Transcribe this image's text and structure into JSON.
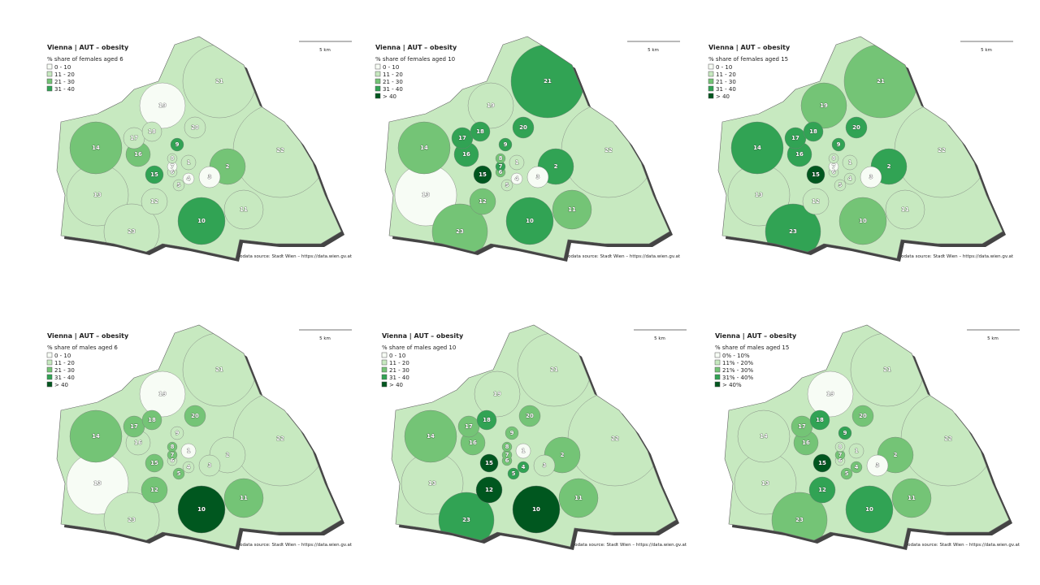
{
  "district_labels": [
    "21",
    "22",
    "2",
    "20",
    "19",
    "18",
    "17",
    "16",
    "14",
    "15",
    "13",
    "12",
    "23",
    "10",
    "11",
    "3",
    "4",
    "5",
    "6",
    "7",
    "8",
    "9",
    "1"
  ],
  "panels": [
    {
      "title": "Vienna | AUT – obesity",
      "subtitle": "% share of females aged 6",
      "scale": "5 km",
      "source": "geodata source: Stadt Wien – https://data.wien.gv.at",
      "legend": [
        {
          "label": "0 - 10",
          "color": "#f7fcf5"
        },
        {
          "label": "11 - 20",
          "color": "#c7e9c0"
        },
        {
          "label": "21 - 30",
          "color": "#74c476"
        },
        {
          "label": "31 - 40",
          "color": "#31a354"
        }
      ],
      "classes": [
        1,
        1,
        2,
        1,
        0,
        1,
        1,
        2,
        2,
        3,
        1,
        1,
        1,
        3,
        1,
        0,
        0,
        1,
        1,
        0,
        1,
        3,
        1
      ]
    },
    {
      "title": "Vienna | AUT – obesity",
      "subtitle": "% share of females aged 10",
      "scale": "5 km",
      "source": "geodata source: Stadt Wien – https://data.wien.gv.at",
      "legend": [
        {
          "label": "0 - 10",
          "color": "#f7fcf5"
        },
        {
          "label": "11 - 20",
          "color": "#c7e9c0"
        },
        {
          "label": "21 - 30",
          "color": "#74c476"
        },
        {
          "label": "31 - 40",
          "color": "#31a354"
        },
        {
          "label": "> 40",
          "color": "#00571f"
        }
      ],
      "classes": [
        3,
        1,
        3,
        3,
        1,
        3,
        3,
        3,
        2,
        4,
        0,
        2,
        2,
        3,
        2,
        0,
        0,
        1,
        2,
        3,
        2,
        3,
        1
      ]
    },
    {
      "title": "Vienna | AUT – obesity",
      "subtitle": "% share of females aged 15",
      "scale": "5 km",
      "source": "geodata source: Stadt Wien – https://data.wien.gv.at",
      "legend": [
        {
          "label": "0 - 10",
          "color": "#f7fcf5"
        },
        {
          "label": "11 - 20",
          "color": "#c7e9c0"
        },
        {
          "label": "21 - 30",
          "color": "#74c476"
        },
        {
          "label": "31 - 40",
          "color": "#31a354"
        },
        {
          "label": "> 40",
          "color": "#00571f"
        }
      ],
      "classes": [
        2,
        1,
        3,
        3,
        2,
        3,
        3,
        3,
        3,
        4,
        1,
        1,
        3,
        2,
        1,
        0,
        1,
        1,
        1,
        0,
        1,
        3,
        1
      ]
    },
    {
      "title": "Vienna | AUT – obesity",
      "subtitle": "% share of males aged 6",
      "scale": "5 km",
      "source": "geodata source: Stadt Wien – https://data.wien.gv.at",
      "legend": [
        {
          "label": "0 - 10",
          "color": "#f7fcf5"
        },
        {
          "label": "11 - 20",
          "color": "#c7e9c0"
        },
        {
          "label": "21 - 30",
          "color": "#74c476"
        },
        {
          "label": "31 - 40",
          "color": "#31a354"
        },
        {
          "label": "> 40",
          "color": "#00571f"
        }
      ],
      "classes": [
        1,
        1,
        1,
        2,
        0,
        2,
        2,
        1,
        2,
        2,
        0,
        2,
        1,
        4,
        2,
        1,
        1,
        2,
        1,
        2,
        2,
        1,
        0
      ]
    },
    {
      "title": "Vienna | AUT – obesity",
      "subtitle": "% share of males aged 10",
      "scale": "5 km",
      "source": "geodata source: Stadt Wien – https://data.wien.gv.at",
      "legend": [
        {
          "label": "0 - 10",
          "color": "#f7fcf5"
        },
        {
          "label": "11 - 20",
          "color": "#c7e9c0"
        },
        {
          "label": "21 - 30",
          "color": "#74c476"
        },
        {
          "label": "31 - 40",
          "color": "#31a354"
        },
        {
          "label": "> 40",
          "color": "#00571f"
        }
      ],
      "classes": [
        1,
        1,
        2,
        2,
        1,
        3,
        2,
        2,
        2,
        4,
        1,
        4,
        3,
        4,
        2,
        1,
        3,
        3,
        2,
        2,
        2,
        2,
        0
      ]
    },
    {
      "title": "Vienna | AUT – obesity",
      "subtitle": "% share of males aged 15",
      "scale": "5 km",
      "source": "geodata source: Stadt Wien – https://data.wien.gv.at",
      "legend": [
        {
          "label": "0% - 10%",
          "color": "#f7fcf5"
        },
        {
          "label": "11% - 20%",
          "color": "#c7e9c0"
        },
        {
          "label": "21% - 30%",
          "color": "#74c476"
        },
        {
          "label": "31% - 40%",
          "color": "#31a354"
        },
        {
          "label": "> 40%",
          "color": "#00571f"
        }
      ],
      "classes": [
        1,
        1,
        2,
        2,
        0,
        3,
        2,
        2,
        1,
        4,
        1,
        3,
        2,
        3,
        2,
        0,
        2,
        2,
        1,
        2,
        1,
        3,
        1
      ]
    }
  ]
}
